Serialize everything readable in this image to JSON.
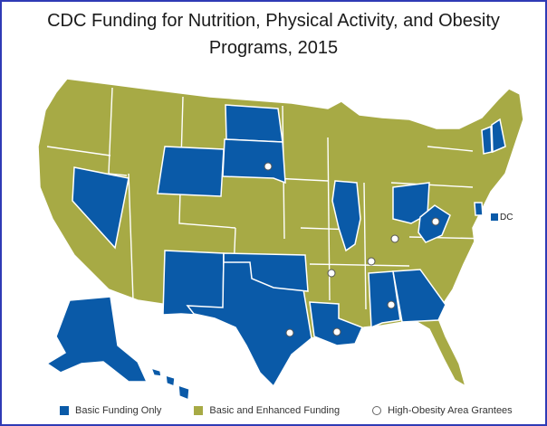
{
  "title_line1": "CDC Funding for Nutrition, Physical Activity, and Obesity",
  "title_line2": "Programs, 2015",
  "colors": {
    "basic": "#0a5aa8",
    "enhanced": "#a7aa45",
    "border": "#ffffff",
    "frame": "#2f3bb5"
  },
  "legend": {
    "basic": "Basic Funding Only",
    "enhanced": "Basic and Enhanced Funding",
    "grantees": "High-Obesity Area Grantees"
  },
  "dc_label": "DC",
  "basic_states": [
    "North Dakota",
    "South Dakota",
    "Wyoming",
    "Nevada",
    "New Mexico",
    "Texas",
    "Oklahoma",
    "Louisiana",
    "Illinois",
    "Ohio",
    "West Virginia",
    "Alabama",
    "Georgia",
    "Alaska",
    "Hawaii",
    "Vermont",
    "New Hampshire",
    "Delaware",
    "DC"
  ],
  "grantee_states": [
    "South Dakota",
    "Kentucky",
    "West Virginia",
    "Arkansas",
    "Tennessee",
    "Alabama",
    "Texas",
    "Louisiana"
  ]
}
